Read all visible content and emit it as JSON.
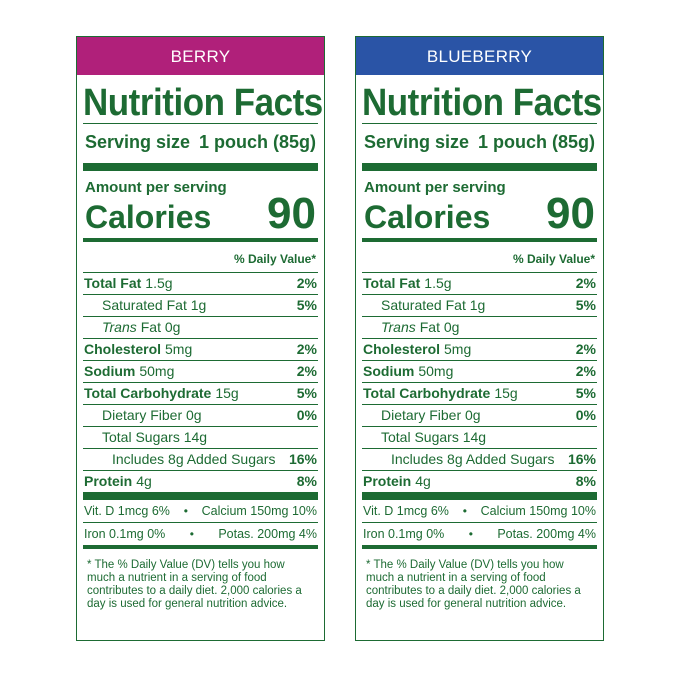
{
  "panels": [
    {
      "flavor": "BERRY",
      "title": "Nutrition Facts",
      "serving_label": "Serving size",
      "serving_value": "1 pouch (85g)",
      "amount_label": "Amount per serving",
      "calories_label": "Calories",
      "calories_value": "90",
      "dv_header": "% Daily Value*",
      "nutrients": [
        {
          "bold": "Total Fat",
          "rest": "1.5g",
          "pct": "2%"
        },
        {
          "bold": "",
          "rest": "Saturated Fat 1g",
          "pct": "5%"
        },
        {
          "italic": "Trans",
          "rest": "Fat 0g",
          "pct": ""
        },
        {
          "bold": "Cholesterol",
          "rest": "5mg",
          "pct": "2%"
        },
        {
          "bold": "Sodium",
          "rest": "50mg",
          "pct": "2%"
        },
        {
          "bold": "Total Carbohydrate",
          "rest": "15g",
          "pct": "5%"
        },
        {
          "bold": "",
          "rest": "Dietary Fiber 0g",
          "pct": "0%"
        },
        {
          "bold": "",
          "rest": "Total Sugars 14g",
          "pct": ""
        },
        {
          "bold": "",
          "rest": "Includes 8g Added Sugars",
          "pct": "16%"
        },
        {
          "bold": "Protein",
          "rest": "4g",
          "pct": "8%"
        }
      ],
      "vitamins": [
        {
          "left": "Vit. D 1mcg 6%",
          "right": "Calcium 150mg 10%"
        },
        {
          "left": "Iron 0.1mg 0%",
          "right": "Potas. 200mg 4%"
        }
      ],
      "footnote": "* The % Daily Value (DV) tells you how much a nutrient in a serving of food contributes to a daily diet. 2,000 calories a day is used for general nutrition advice."
    },
    {
      "flavor": "BLUEBERRY",
      "title": "Nutrition Facts",
      "serving_label": "Serving size",
      "serving_value": "1 pouch (85g)",
      "amount_label": "Amount per serving",
      "calories_label": "Calories",
      "calories_value": "90",
      "dv_header": "% Daily Value*",
      "nutrients": [
        {
          "bold": "Total Fat",
          "rest": "1.5g",
          "pct": "2%"
        },
        {
          "bold": "",
          "rest": "Saturated Fat 1g",
          "pct": "5%"
        },
        {
          "italic": "Trans",
          "rest": "Fat 0g",
          "pct": ""
        },
        {
          "bold": "Cholesterol",
          "rest": "5mg",
          "pct": "2%"
        },
        {
          "bold": "Sodium",
          "rest": "50mg",
          "pct": "2%"
        },
        {
          "bold": "Total Carbohydrate",
          "rest": "15g",
          "pct": "5%"
        },
        {
          "bold": "",
          "rest": "Dietary Fiber 0g",
          "pct": "0%"
        },
        {
          "bold": "",
          "rest": "Total Sugars 14g",
          "pct": ""
        },
        {
          "bold": "",
          "rest": "Includes 8g Added Sugars",
          "pct": "16%"
        },
        {
          "bold": "Protein",
          "rest": "4g",
          "pct": "8%"
        }
      ],
      "vitamins": [
        {
          "left": "Vit. D 1mcg 6%",
          "right": "Calcium 150mg 10%"
        },
        {
          "left": "Iron 0.1mg 0%",
          "right": "Potas. 200mg 4%"
        }
      ],
      "footnote": "* The % Daily Value (DV) tells you how much a nutrient in a serving of food contributes to a daily diet. 2,000 calories a day is used for general nutrition advice."
    }
  ],
  "colors": {
    "text": "#1d6b33",
    "berry_header": "#b0207a",
    "blueberry_header": "#2a54a6"
  }
}
